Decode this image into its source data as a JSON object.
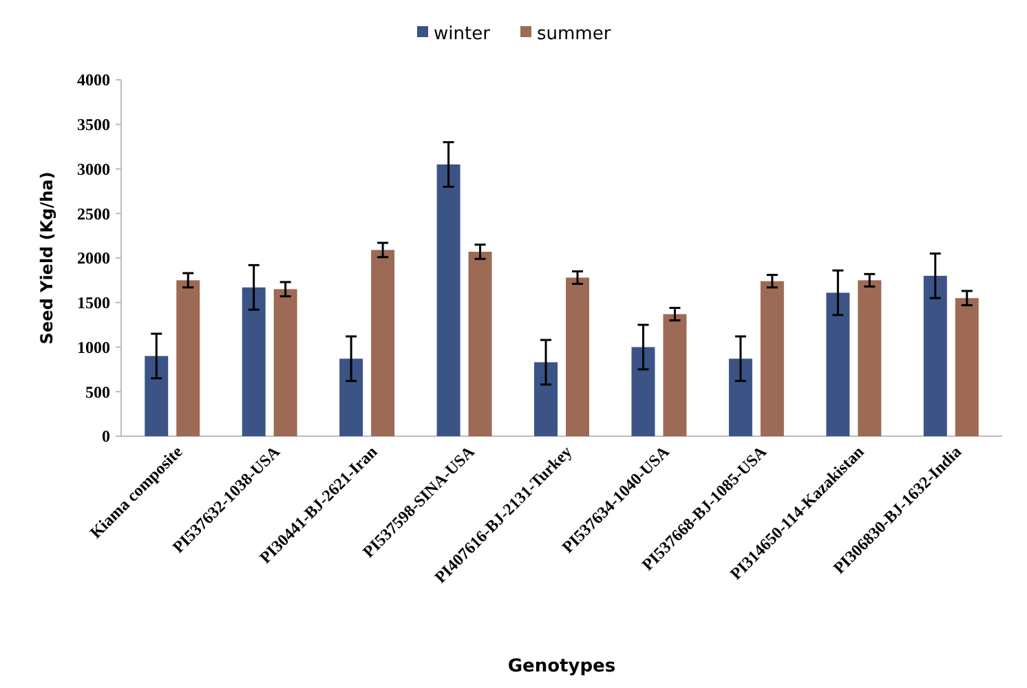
{
  "chart_data": {
    "type": "bar",
    "xlabel": "Genotypes",
    "ylabel": "Seed Yield (Kg/ha)",
    "categories": [
      "Kiama composite",
      "PI537632-1038-USA",
      "PI30441-BJ-2621-Iran",
      "PI537598-SINA-USA",
      "PI407616-BJ-2131-Turkey",
      "PI537634-1040-USA",
      "PI537668-BJ-1085-USA",
      "PI314650-114-Kazakistan",
      "PI306830-BJ-1632-India"
    ],
    "series": [
      {
        "name": "winter",
        "color": "#3b5485",
        "values": [
          900,
          1670,
          870,
          3050,
          830,
          1000,
          870,
          1610,
          1800
        ],
        "errors": [
          250,
          250,
          250,
          250,
          250,
          250,
          250,
          250,
          250
        ]
      },
      {
        "name": "summer",
        "color": "#9c6a55",
        "values": [
          1750,
          1650,
          2090,
          2070,
          1780,
          1370,
          1740,
          1750,
          1550
        ],
        "errors": [
          80,
          80,
          80,
          80,
          70,
          70,
          70,
          70,
          80
        ]
      }
    ],
    "ylim": [
      0,
      4000
    ],
    "yticks": [
      0,
      500,
      1000,
      1500,
      2000,
      2500,
      3000,
      3500,
      4000
    ],
    "grid": false,
    "legend": "top"
  }
}
